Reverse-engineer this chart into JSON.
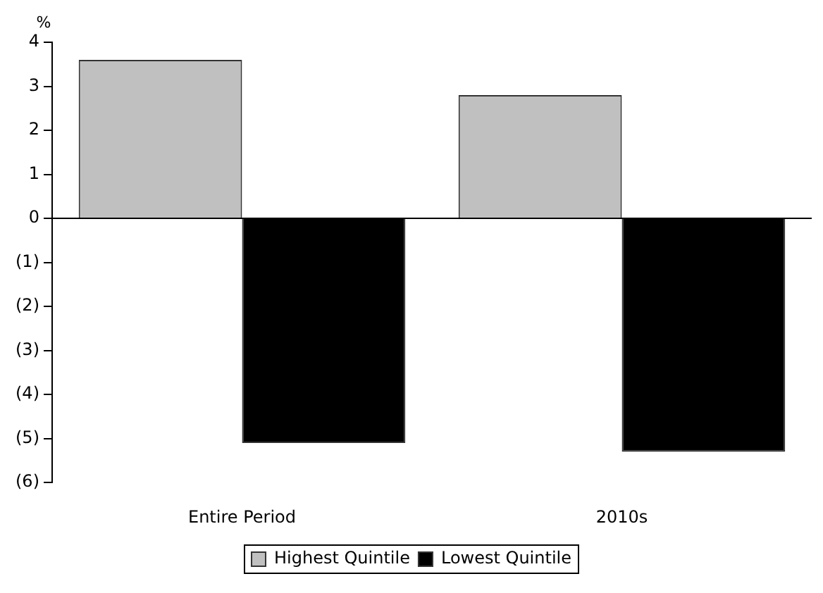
{
  "chart_data": {
    "type": "bar",
    "ylabel": "%",
    "categories": [
      "Entire Period",
      "2010s"
    ],
    "series": [
      {
        "name": "Highest Quintile",
        "color": "#c0c0c0",
        "values": [
          3.6,
          2.8
        ]
      },
      {
        "name": "Lowest Quintile",
        "color": "#000000",
        "values": [
          -5.1,
          -5.3
        ]
      }
    ],
    "ylim": [
      -6,
      4
    ],
    "yticks": [
      4,
      3,
      2,
      1,
      0,
      {
        "value": -1,
        "label": "(1)"
      },
      {
        "value": -2,
        "label": "(2)"
      },
      {
        "value": -3,
        "label": "(3)"
      },
      {
        "value": -4,
        "label": "(4)"
      },
      {
        "value": -5,
        "label": "(5)"
      },
      {
        "value": -6,
        "label": "(6)"
      }
    ],
    "ref_lines": [
      {
        "axis": "y",
        "value": 0,
        "color": "#000000"
      }
    ],
    "grid": false,
    "legend": "bottom"
  }
}
